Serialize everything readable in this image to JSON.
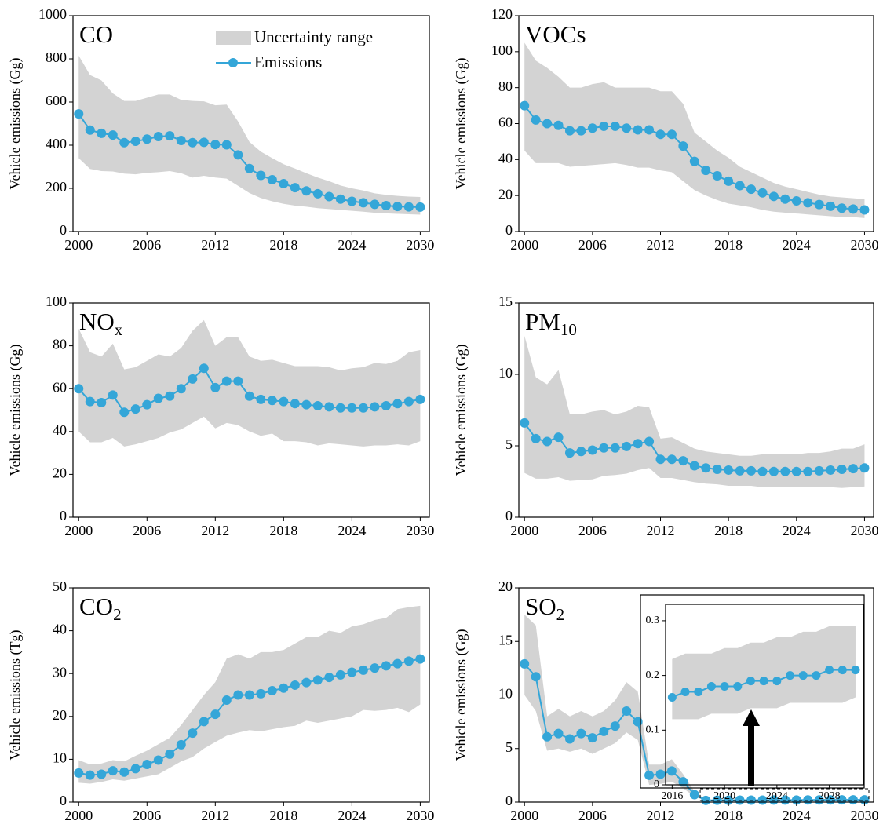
{
  "chart_data": [
    {
      "type": "line",
      "title": "CO",
      "ylabel": "Vehicle emissions (Gg)",
      "legend": "top",
      "x": [
        2000,
        2001,
        2002,
        2003,
        2004,
        2005,
        2006,
        2007,
        2008,
        2009,
        2010,
        2011,
        2012,
        2013,
        2014,
        2015,
        2016,
        2017,
        2018,
        2019,
        2020,
        2021,
        2022,
        2023,
        2024,
        2025,
        2026,
        2027,
        2028,
        2029,
        2030
      ],
      "series": [
        {
          "name": "Emissions",
          "color": "#34a6d8",
          "values": [
            545,
            470,
            455,
            447,
            412,
            418,
            428,
            440,
            443,
            422,
            412,
            413,
            403,
            402,
            355,
            292,
            260,
            240,
            222,
            203,
            188,
            175,
            162,
            150,
            140,
            133,
            126,
            120,
            116,
            114,
            113
          ]
        }
      ],
      "band": {
        "name": "Uncertainty range",
        "color": "#d3d3d3",
        "upper": [
          815,
          725,
          700,
          640,
          605,
          605,
          620,
          635,
          635,
          610,
          605,
          603,
          585,
          588,
          510,
          415,
          370,
          340,
          312,
          292,
          270,
          250,
          233,
          213,
          200,
          190,
          177,
          170,
          165,
          162,
          160
        ],
        "lower": [
          340,
          290,
          280,
          278,
          268,
          265,
          272,
          275,
          280,
          270,
          250,
          258,
          250,
          245,
          212,
          178,
          155,
          140,
          128,
          120,
          115,
          108,
          104,
          100,
          96,
          92,
          87,
          84,
          82,
          80,
          78
        ]
      },
      "xlim": [
        1999.5,
        2030.8
      ],
      "xticks": [
        2000,
        2006,
        2012,
        2018,
        2024,
        2030
      ],
      "ylim": [
        0,
        1000
      ],
      "yticks": [
        0,
        200,
        400,
        600,
        800,
        1000
      ]
    },
    {
      "type": "line",
      "title": "VOCs",
      "ylabel": "Vehicle emissions (Gg)",
      "x": [
        2000,
        2001,
        2002,
        2003,
        2004,
        2005,
        2006,
        2007,
        2008,
        2009,
        2010,
        2011,
        2012,
        2013,
        2014,
        2015,
        2016,
        2017,
        2018,
        2019,
        2020,
        2021,
        2022,
        2023,
        2024,
        2025,
        2026,
        2027,
        2028,
        2029,
        2030
      ],
      "series": [
        {
          "color": "#34a6d8",
          "values": [
            70,
            62,
            60,
            59,
            56,
            56,
            57.5,
            58.5,
            58.5,
            57.5,
            56.5,
            56.5,
            54,
            54,
            47.5,
            39,
            34,
            31,
            28,
            25.5,
            23.5,
            21.5,
            19.5,
            18,
            17,
            16,
            15,
            14,
            13,
            12.5,
            12
          ]
        }
      ],
      "band": {
        "color": "#d3d3d3",
        "upper": [
          105,
          95,
          91,
          86,
          80,
          80,
          82,
          83,
          80,
          80,
          80,
          80,
          78,
          78,
          71,
          55,
          50,
          45,
          41,
          36,
          33,
          30,
          27,
          25,
          23.5,
          22,
          20.5,
          19.5,
          19,
          18.5,
          18
        ],
        "lower": [
          45,
          38,
          38,
          38,
          36,
          36.5,
          37,
          37.5,
          38,
          37,
          35.5,
          35.5,
          34,
          33,
          28,
          23,
          20,
          17.5,
          15.5,
          14.5,
          13.5,
          12,
          11,
          10.5,
          10,
          9.5,
          9,
          8.5,
          8,
          8,
          7.5
        ]
      },
      "xlim": [
        1999.5,
        2030.8
      ],
      "xticks": [
        2000,
        2006,
        2012,
        2018,
        2024,
        2030
      ],
      "ylim": [
        0,
        120
      ],
      "yticks": [
        0,
        20,
        40,
        60,
        80,
        100,
        120
      ]
    },
    {
      "type": "line",
      "title": "NO",
      "title_sub": "x",
      "ylabel": "Vehicle emissions (Gg)",
      "x": [
        2000,
        2001,
        2002,
        2003,
        2004,
        2005,
        2006,
        2007,
        2008,
        2009,
        2010,
        2011,
        2012,
        2013,
        2014,
        2015,
        2016,
        2017,
        2018,
        2019,
        2020,
        2021,
        2022,
        2023,
        2024,
        2025,
        2026,
        2027,
        2028,
        2029,
        2030
      ],
      "series": [
        {
          "color": "#34a6d8",
          "values": [
            60,
            54,
            53.5,
            57,
            49,
            50.5,
            52.5,
            55.5,
            56.5,
            60,
            64.5,
            69.5,
            60.5,
            63.5,
            63.5,
            56.5,
            55,
            54.5,
            54,
            53,
            52.5,
            52,
            51.5,
            51,
            51,
            51,
            51.5,
            52,
            53,
            54,
            55
          ]
        }
      ],
      "band": {
        "color": "#d3d3d3",
        "upper": [
          88,
          77,
          75,
          81,
          69,
          70,
          73,
          76,
          75,
          79,
          87,
          92,
          80,
          84,
          84,
          75,
          73,
          73.5,
          72,
          70.5,
          70.5,
          70.5,
          70,
          68.5,
          69.5,
          70,
          72,
          71.5,
          73,
          77,
          78
        ],
        "lower": [
          40,
          35,
          35,
          37,
          33,
          34,
          35.5,
          37,
          39.5,
          41,
          44,
          47,
          41.5,
          44,
          43,
          40,
          38,
          39,
          35.5,
          35.5,
          35,
          33.5,
          34.5,
          34,
          33.5,
          33,
          33.5,
          33.5,
          34,
          33.5,
          35.5
        ]
      },
      "xlim": [
        1999.5,
        2030.8
      ],
      "xticks": [
        2000,
        2006,
        2012,
        2018,
        2024,
        2030
      ],
      "ylim": [
        0,
        100
      ],
      "yticks": [
        0,
        20,
        40,
        60,
        80,
        100
      ]
    },
    {
      "type": "line",
      "title": "PM",
      "title_sub": "10",
      "ylabel": "Vehicle emissions (Gg)",
      "x": [
        2000,
        2001,
        2002,
        2003,
        2004,
        2005,
        2006,
        2007,
        2008,
        2009,
        2010,
        2011,
        2012,
        2013,
        2014,
        2015,
        2016,
        2017,
        2018,
        2019,
        2020,
        2021,
        2022,
        2023,
        2024,
        2025,
        2026,
        2027,
        2028,
        2029,
        2030
      ],
      "series": [
        {
          "color": "#34a6d8",
          "values": [
            6.6,
            5.5,
            5.3,
            5.6,
            4.5,
            4.6,
            4.7,
            4.85,
            4.85,
            4.95,
            5.15,
            5.3,
            4.05,
            4.05,
            3.95,
            3.6,
            3.45,
            3.35,
            3.3,
            3.25,
            3.25,
            3.2,
            3.2,
            3.2,
            3.2,
            3.2,
            3.25,
            3.3,
            3.35,
            3.4,
            3.45
          ]
        }
      ],
      "band": {
        "color": "#d3d3d3",
        "upper": [
          12.7,
          9.8,
          9.3,
          10.3,
          7.2,
          7.2,
          7.4,
          7.5,
          7.2,
          7.4,
          7.8,
          7.7,
          5.5,
          5.6,
          5.2,
          4.8,
          4.6,
          4.5,
          4.4,
          4.3,
          4.3,
          4.4,
          4.4,
          4.4,
          4.4,
          4.5,
          4.5,
          4.6,
          4.8,
          4.8,
          5.1
        ],
        "lower": [
          3.1,
          2.7,
          2.7,
          2.8,
          2.55,
          2.6,
          2.65,
          2.9,
          2.95,
          3.05,
          3.3,
          3.45,
          2.75,
          2.75,
          2.6,
          2.45,
          2.35,
          2.3,
          2.2,
          2.2,
          2.2,
          2.1,
          2.1,
          2.1,
          2.1,
          2.1,
          2.1,
          2.1,
          2.05,
          2.1,
          2.15
        ]
      },
      "xlim": [
        1999.5,
        2030.8
      ],
      "xticks": [
        2000,
        2006,
        2012,
        2018,
        2024,
        2030
      ],
      "ylim": [
        0,
        15
      ],
      "yticks": [
        0,
        5,
        10,
        15
      ]
    },
    {
      "type": "line",
      "title": "CO",
      "title_sub": "2",
      "ylabel": "Vehicle emissions (Tg)",
      "x": [
        2000,
        2001,
        2002,
        2003,
        2004,
        2005,
        2006,
        2007,
        2008,
        2009,
        2010,
        2011,
        2012,
        2013,
        2014,
        2015,
        2016,
        2017,
        2018,
        2019,
        2020,
        2021,
        2022,
        2023,
        2024,
        2025,
        2026,
        2027,
        2028,
        2029,
        2030
      ],
      "series": [
        {
          "color": "#34a6d8",
          "values": [
            6.8,
            6.3,
            6.5,
            7.3,
            7.0,
            7.8,
            8.8,
            9.8,
            11.2,
            13.4,
            16.1,
            18.8,
            20.5,
            23.8,
            25.0,
            25.0,
            25.3,
            26.0,
            26.6,
            27.3,
            27.9,
            28.5,
            29.1,
            29.7,
            30.3,
            30.8,
            31.3,
            31.8,
            32.3,
            32.9,
            33.4
          ]
        }
      ],
      "band": {
        "color": "#d3d3d3",
        "upper": [
          9.8,
          8.8,
          9.0,
          9.8,
          9.5,
          10.8,
          12.0,
          13.5,
          15.0,
          18.0,
          21.5,
          25.0,
          28.0,
          33.5,
          34.5,
          33.5,
          35.0,
          35.0,
          35.5,
          37.0,
          38.5,
          38.5,
          40.0,
          39.5,
          41.0,
          41.5,
          42.5,
          43.0,
          45.0,
          45.5,
          45.8
        ],
        "lower": [
          4.5,
          4.3,
          4.7,
          5.3,
          5.0,
          5.5,
          6.0,
          6.5,
          8.0,
          9.5,
          10.5,
          12.5,
          14.0,
          15.5,
          16.2,
          16.8,
          16.5,
          17.0,
          17.5,
          17.8,
          19.0,
          18.5,
          19.0,
          19.5,
          20.0,
          21.5,
          21.3,
          21.5,
          22.0,
          21.0,
          22.8
        ]
      },
      "xlim": [
        1999.5,
        2030.8
      ],
      "xticks": [
        2000,
        2006,
        2012,
        2018,
        2024,
        2030
      ],
      "ylim": [
        0,
        50
      ],
      "yticks": [
        0,
        10,
        20,
        30,
        40,
        50
      ]
    },
    {
      "type": "line",
      "title": "SO",
      "title_sub": "2",
      "ylabel": "Vehicle emissions (Gg)",
      "x": [
        2000,
        2001,
        2002,
        2003,
        2004,
        2005,
        2006,
        2007,
        2008,
        2009,
        2010,
        2011,
        2012,
        2013,
        2014,
        2015,
        2016,
        2017,
        2018,
        2019,
        2020,
        2021,
        2022,
        2023,
        2024,
        2025,
        2026,
        2027,
        2028,
        2029,
        2030
      ],
      "series": [
        {
          "color": "#34a6d8",
          "values": [
            12.9,
            11.7,
            6.1,
            6.4,
            5.9,
            6.4,
            6.0,
            6.6,
            7.1,
            8.5,
            7.5,
            2.5,
            2.6,
            2.9,
            1.9,
            0.7,
            0.16,
            0.17,
            0.17,
            0.18,
            0.18,
            0.18,
            0.19,
            0.19,
            0.19,
            0.2,
            0.2,
            0.2,
            0.21,
            0.21,
            0.21
          ]
        }
      ],
      "band": {
        "color": "#d3d3d3",
        "upper": [
          17.5,
          16.5,
          8.0,
          8.7,
          8.0,
          8.5,
          8.0,
          8.5,
          9.5,
          11.2,
          10.3,
          3.5,
          3.5,
          4.0,
          2.6,
          1.0,
          0.23,
          0.24,
          0.24,
          0.24,
          0.25,
          0.25,
          0.26,
          0.26,
          0.27,
          0.27,
          0.28,
          0.28,
          0.29,
          0.29,
          0.29
        ],
        "lower": [
          10.0,
          8.5,
          4.8,
          5.0,
          4.7,
          5.0,
          4.5,
          5.0,
          5.5,
          6.5,
          5.8,
          1.6,
          1.7,
          1.9,
          1.3,
          0.5,
          0.12,
          0.12,
          0.12,
          0.13,
          0.13,
          0.13,
          0.14,
          0.14,
          0.14,
          0.15,
          0.15,
          0.15,
          0.15,
          0.15,
          0.16
        ]
      },
      "xlim": [
        1999.5,
        2030.8
      ],
      "xticks": [
        2000,
        2006,
        2012,
        2018,
        2024,
        2030
      ],
      "ylim": [
        0,
        20
      ],
      "yticks": [
        0,
        5,
        10,
        15,
        20
      ],
      "inset": {
        "xlim": [
          2015.5,
          2030.6
        ],
        "xticks": [
          2016,
          2020,
          2024,
          2028
        ],
        "ylim": [
          0,
          0.33
        ],
        "yticks": [
          0,
          0.1,
          0.2,
          0.3
        ]
      }
    }
  ]
}
